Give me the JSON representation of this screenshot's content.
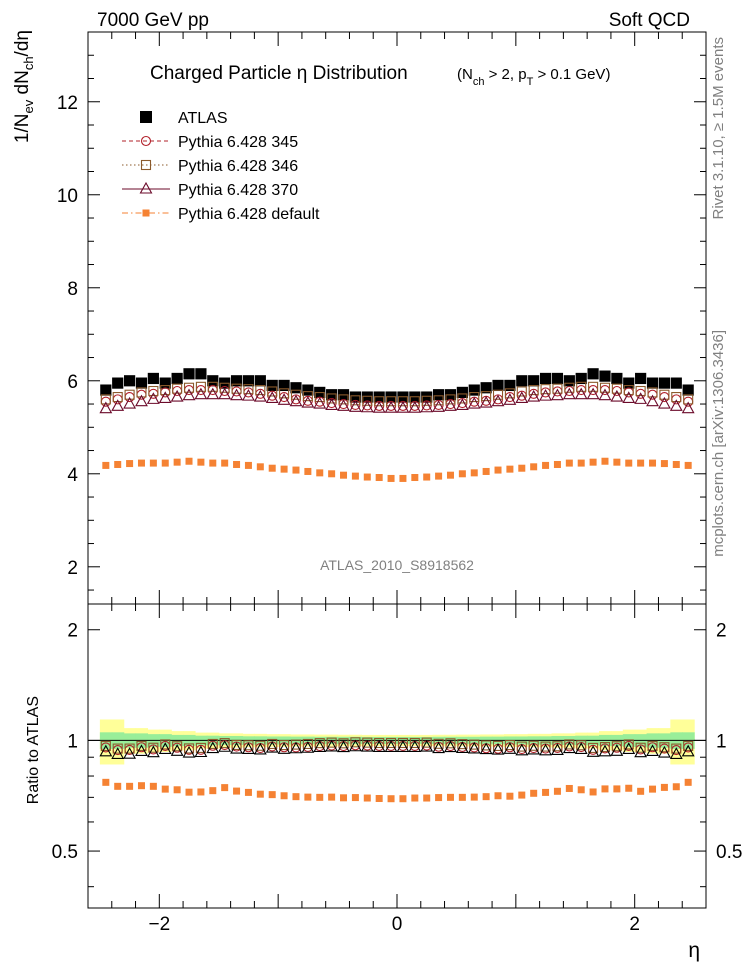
{
  "header": {
    "energy": "7000 GeV pp",
    "process": "Soft QCD",
    "side_rivet": "Rivet 3.1.10, ≥ 1.5M events",
    "side_mcplots": "mcplots.cern.ch [arXiv:1306.3436]",
    "analysis_id": "ATLAS_2010_S8918562"
  },
  "chart_data": [
    {
      "type": "scatter",
      "title": "Charged Particle  η Distribution",
      "title_cuts": "(N_ch > 2, p_T > 0.1 GeV)",
      "ylabel": "1/N_ev dN_ch/dη",
      "xlim": [
        -2.6,
        2.6
      ],
      "ylim": [
        1.2,
        13.5
      ],
      "yticks": [
        2,
        4,
        6,
        8,
        10,
        12
      ],
      "legend_position": "top-left",
      "x": [
        -2.45,
        -2.35,
        -2.25,
        -2.15,
        -2.05,
        -1.95,
        -1.85,
        -1.75,
        -1.65,
        -1.55,
        -1.45,
        -1.35,
        -1.25,
        -1.15,
        -1.05,
        -0.95,
        -0.85,
        -0.75,
        -0.65,
        -0.55,
        -0.45,
        -0.35,
        -0.25,
        -0.15,
        -0.05,
        0.05,
        0.15,
        0.25,
        0.35,
        0.45,
        0.55,
        0.65,
        0.75,
        0.85,
        0.95,
        1.05,
        1.15,
        1.25,
        1.35,
        1.45,
        1.55,
        1.65,
        1.75,
        1.85,
        1.95,
        2.05,
        2.15,
        2.25,
        2.35,
        2.45
      ],
      "series": [
        {
          "name": "ATLAS",
          "color": "#000000",
          "marker": "filled-square",
          "values": [
            5.8,
            5.95,
            6.0,
            5.95,
            6.05,
            5.95,
            6.05,
            6.15,
            6.15,
            6.0,
            5.95,
            6.0,
            6.0,
            6.0,
            5.9,
            5.9,
            5.85,
            5.8,
            5.75,
            5.7,
            5.7,
            5.65,
            5.65,
            5.65,
            5.65,
            5.65,
            5.65,
            5.65,
            5.7,
            5.7,
            5.75,
            5.8,
            5.85,
            5.9,
            5.9,
            6.0,
            6.0,
            6.05,
            6.05,
            6.0,
            6.05,
            6.15,
            6.1,
            6.05,
            5.95,
            6.05,
            5.95,
            5.95,
            5.95,
            5.8
          ]
        },
        {
          "name": "Pythia 6.428 345",
          "color": "#b2202a",
          "marker": "open-circle",
          "line": "dashed",
          "values": [
            5.55,
            5.6,
            5.65,
            5.7,
            5.72,
            5.75,
            5.78,
            5.8,
            5.8,
            5.8,
            5.78,
            5.77,
            5.75,
            5.72,
            5.68,
            5.65,
            5.6,
            5.57,
            5.55,
            5.52,
            5.5,
            5.48,
            5.47,
            5.46,
            5.46,
            5.46,
            5.46,
            5.47,
            5.48,
            5.5,
            5.52,
            5.55,
            5.57,
            5.6,
            5.65,
            5.68,
            5.72,
            5.75,
            5.77,
            5.78,
            5.8,
            5.8,
            5.8,
            5.78,
            5.75,
            5.72,
            5.7,
            5.65,
            5.6,
            5.55
          ]
        },
        {
          "name": "Pythia 6.428 346",
          "color": "#8b5a2b",
          "marker": "open-square",
          "line": "dotted",
          "values": [
            5.6,
            5.65,
            5.7,
            5.75,
            5.78,
            5.8,
            5.83,
            5.85,
            5.87,
            5.87,
            5.85,
            5.83,
            5.82,
            5.8,
            5.77,
            5.73,
            5.7,
            5.67,
            5.65,
            5.62,
            5.6,
            5.58,
            5.57,
            5.56,
            5.56,
            5.56,
            5.56,
            5.57,
            5.58,
            5.6,
            5.62,
            5.65,
            5.67,
            5.7,
            5.73,
            5.77,
            5.8,
            5.82,
            5.83,
            5.85,
            5.87,
            5.87,
            5.85,
            5.83,
            5.8,
            5.78,
            5.75,
            5.7,
            5.65,
            5.6
          ]
        },
        {
          "name": "Pythia 6.428 370",
          "color": "#6b0a2a",
          "marker": "open-triangle",
          "line": "solid",
          "values": [
            5.4,
            5.45,
            5.5,
            5.55,
            5.6,
            5.62,
            5.65,
            5.68,
            5.7,
            5.7,
            5.7,
            5.68,
            5.67,
            5.65,
            5.62,
            5.58,
            5.55,
            5.52,
            5.5,
            5.47,
            5.45,
            5.43,
            5.42,
            5.41,
            5.41,
            5.41,
            5.41,
            5.42,
            5.43,
            5.45,
            5.47,
            5.5,
            5.52,
            5.55,
            5.58,
            5.62,
            5.65,
            5.67,
            5.68,
            5.7,
            5.7,
            5.7,
            5.68,
            5.65,
            5.62,
            5.6,
            5.55,
            5.5,
            5.45,
            5.4
          ]
        },
        {
          "name": "Pythia 6.428 default",
          "color": "#f58233",
          "marker": "small-filled-square",
          "line": "dashdot",
          "values": [
            4.18,
            4.2,
            4.22,
            4.23,
            4.23,
            4.23,
            4.25,
            4.27,
            4.25,
            4.23,
            4.23,
            4.2,
            4.18,
            4.15,
            4.12,
            4.1,
            4.08,
            4.05,
            4.02,
            4.0,
            3.97,
            3.95,
            3.93,
            3.92,
            3.9,
            3.9,
            3.92,
            3.93,
            3.95,
            3.97,
            4.0,
            4.02,
            4.05,
            4.08,
            4.1,
            4.12,
            4.15,
            4.18,
            4.2,
            4.23,
            4.23,
            4.25,
            4.27,
            4.25,
            4.23,
            4.23,
            4.23,
            4.22,
            4.2,
            4.18
          ]
        }
      ]
    },
    {
      "type": "scatter",
      "ylabel": "Ratio to ATLAS",
      "xlabel": "η",
      "xlim": [
        -2.6,
        2.6
      ],
      "ylim": [
        0.35,
        2.35
      ],
      "yticks": [
        0.5,
        1,
        2
      ],
      "xticks": [
        -2,
        0,
        2
      ],
      "band_inner_halfwidth": [
        0.052,
        0.052,
        0.045,
        0.045,
        0.04,
        0.04,
        0.035,
        0.035,
        0.03,
        0.03,
        0.028,
        0.028,
        0.026,
        0.026,
        0.025,
        0.025,
        0.024,
        0.024,
        0.023,
        0.023,
        0.023,
        0.023,
        0.022,
        0.022,
        0.022,
        0.022,
        0.022,
        0.022,
        0.023,
        0.023,
        0.023,
        0.023,
        0.024,
        0.024,
        0.025,
        0.025,
        0.026,
        0.026,
        0.028,
        0.028,
        0.03,
        0.03,
        0.035,
        0.035,
        0.04,
        0.04,
        0.045,
        0.045,
        0.052,
        0.052
      ],
      "band_outer_halfwidth": [
        0.14,
        0.14,
        0.08,
        0.08,
        0.07,
        0.07,
        0.06,
        0.06,
        0.05,
        0.05,
        0.045,
        0.045,
        0.042,
        0.042,
        0.04,
        0.04,
        0.038,
        0.038,
        0.037,
        0.037,
        0.036,
        0.036,
        0.035,
        0.035,
        0.035,
        0.035,
        0.035,
        0.035,
        0.036,
        0.036,
        0.037,
        0.037,
        0.038,
        0.038,
        0.04,
        0.04,
        0.042,
        0.042,
        0.045,
        0.045,
        0.05,
        0.05,
        0.06,
        0.06,
        0.07,
        0.07,
        0.08,
        0.08,
        0.14,
        0.14
      ],
      "series": [
        {
          "name": "Pythia 6.428 345",
          "values": [
            0.957,
            0.941,
            0.942,
            0.958,
            0.945,
            0.966,
            0.955,
            0.943,
            0.943,
            0.967,
            0.971,
            0.962,
            0.958,
            0.953,
            0.963,
            0.958,
            0.957,
            0.96,
            0.965,
            0.968,
            0.965,
            0.97,
            0.968,
            0.966,
            0.966,
            0.966,
            0.966,
            0.968,
            0.961,
            0.965,
            0.96,
            0.957,
            0.952,
            0.949,
            0.958,
            0.947,
            0.953,
            0.95,
            0.954,
            0.963,
            0.959,
            0.943,
            0.951,
            0.955,
            0.966,
            0.945,
            0.958,
            0.95,
            0.941,
            0.957
          ]
        },
        {
          "name": "Pythia 6.428 346",
          "values": [
            0.966,
            0.95,
            0.95,
            0.966,
            0.955,
            0.975,
            0.964,
            0.951,
            0.954,
            0.978,
            0.983,
            0.972,
            0.97,
            0.967,
            0.978,
            0.971,
            0.974,
            0.978,
            0.983,
            0.986,
            0.982,
            0.988,
            0.986,
            0.984,
            0.984,
            0.984,
            0.984,
            0.986,
            0.979,
            0.982,
            0.977,
            0.974,
            0.969,
            0.966,
            0.971,
            0.962,
            0.967,
            0.962,
            0.964,
            0.975,
            0.97,
            0.954,
            0.959,
            0.964,
            0.975,
            0.955,
            0.966,
            0.958,
            0.95,
            0.966
          ]
        },
        {
          "name": "Pythia 6.428 370",
          "values": [
            0.931,
            0.916,
            0.917,
            0.933,
            0.926,
            0.945,
            0.934,
            0.924,
            0.927,
            0.95,
            0.958,
            0.947,
            0.945,
            0.942,
            0.953,
            0.946,
            0.949,
            0.952,
            0.957,
            0.96,
            0.956,
            0.961,
            0.959,
            0.957,
            0.957,
            0.957,
            0.957,
            0.959,
            0.95,
            0.956,
            0.951,
            0.948,
            0.944,
            0.941,
            0.946,
            0.937,
            0.942,
            0.937,
            0.939,
            0.95,
            0.945,
            0.928,
            0.931,
            0.934,
            0.945,
            0.926,
            0.933,
            0.924,
            0.916,
            0.931
          ]
        },
        {
          "name": "Pythia 6.428 default",
          "values": [
            0.769,
            0.75,
            0.75,
            0.753,
            0.75,
            0.737,
            0.734,
            0.723,
            0.724,
            0.73,
            0.744,
            0.728,
            0.722,
            0.714,
            0.712,
            0.707,
            0.703,
            0.701,
            0.7,
            0.701,
            0.698,
            0.699,
            0.697,
            0.695,
            0.694,
            0.694,
            0.697,
            0.697,
            0.699,
            0.7,
            0.7,
            0.701,
            0.703,
            0.707,
            0.705,
            0.71,
            0.718,
            0.722,
            0.727,
            0.74,
            0.734,
            0.724,
            0.738,
            0.738,
            0.741,
            0.727,
            0.737,
            0.745,
            0.748,
            0.769
          ]
        }
      ]
    }
  ]
}
